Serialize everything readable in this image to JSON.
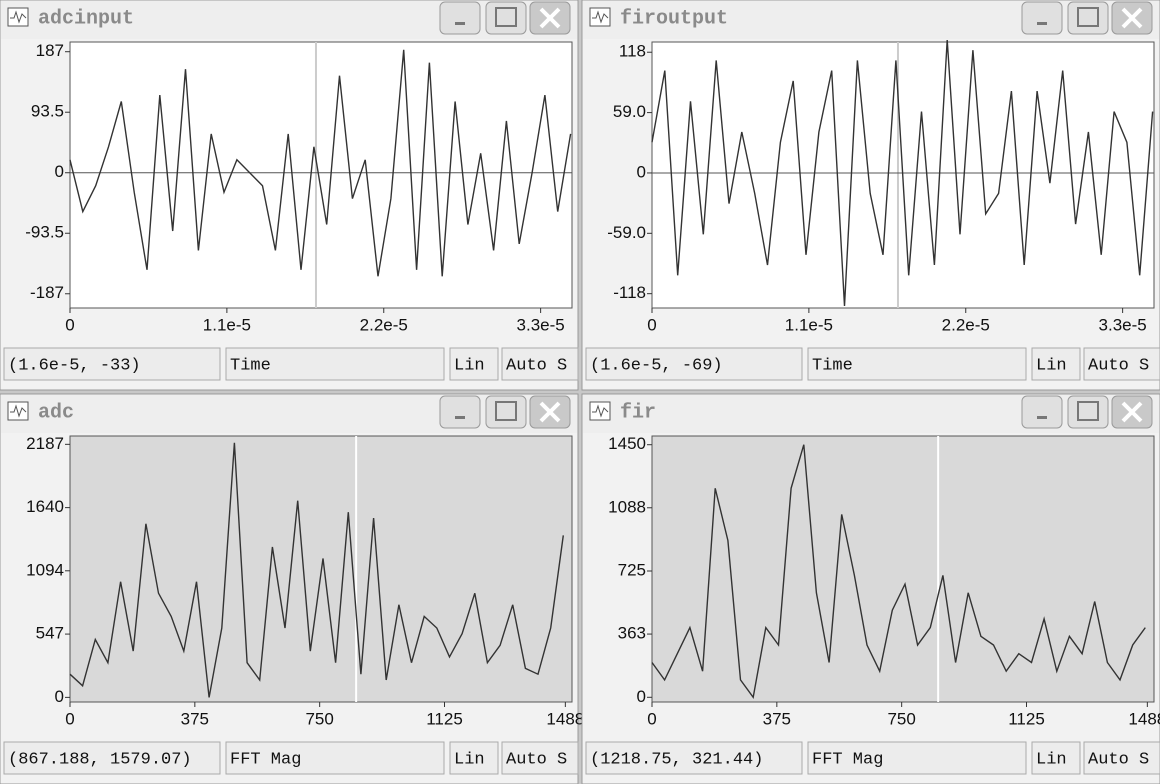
{
  "windows": [
    {
      "title": "adcinput",
      "chart": {
        "type": "line",
        "color": "#333333",
        "plot_background": "#ffffff",
        "zero_line": true,
        "x": [
          0,
          9e-07,
          1.8e-06,
          2.7e-06,
          3.6e-06,
          4.5e-06,
          5.4e-06,
          6.3e-06,
          7.2e-06,
          8.1e-06,
          9e-06,
          9.9e-06,
          1.08e-05,
          1.17e-05,
          1.26e-05,
          1.35e-05,
          1.44e-05,
          1.53e-05,
          1.62e-05,
          1.71e-05,
          1.8e-05,
          1.89e-05,
          1.98e-05,
          2.07e-05,
          2.16e-05,
          2.25e-05,
          2.34e-05,
          2.43e-05,
          2.52e-05,
          2.61e-05,
          2.7e-05,
          2.79e-05,
          2.88e-05,
          2.97e-05,
          3.06e-05,
          3.15e-05,
          3.24e-05,
          3.33e-05,
          3.42e-05,
          3.51e-05
        ],
        "values": [
          20,
          -60,
          -20,
          40,
          110,
          -30,
          -150,
          120,
          -90,
          160,
          -120,
          60,
          -30,
          20,
          0,
          -20,
          -120,
          60,
          -150,
          40,
          -80,
          150,
          -40,
          20,
          -160,
          -40,
          190,
          -150,
          170,
          -160,
          110,
          -80,
          30,
          -120,
          80,
          -110,
          0,
          120,
          -60,
          60
        ],
        "xlim": [
          0,
          3.52e-05
        ],
        "ylim": [
          -209,
          202
        ],
        "xticks": [
          0,
          {
            "value": 1.1e-05,
            "label": "1.1e-5"
          },
          {
            "value": 2.2e-05,
            "label": "2.2e-5"
          },
          {
            "value": 3.3e-05,
            "label": "3.3e-5"
          }
        ],
        "yticks": [
          187,
          93.5,
          0,
          -93.5,
          -187
        ]
      },
      "status": {
        "cursor": "(1.6e-5, -33)",
        "label": "Time",
        "scale": "Lin",
        "mode": "Auto S"
      }
    },
    {
      "title": "firoutput",
      "chart": {
        "type": "line",
        "color": "#333333",
        "plot_background": "#ffffff",
        "zero_line": true,
        "x": [
          0,
          9e-07,
          1.8e-06,
          2.7e-06,
          3.6e-06,
          4.5e-06,
          5.4e-06,
          6.3e-06,
          7.2e-06,
          8.1e-06,
          9e-06,
          9.9e-06,
          1.08e-05,
          1.17e-05,
          1.26e-05,
          1.35e-05,
          1.44e-05,
          1.53e-05,
          1.62e-05,
          1.71e-05,
          1.8e-05,
          1.89e-05,
          1.98e-05,
          2.07e-05,
          2.16e-05,
          2.25e-05,
          2.34e-05,
          2.43e-05,
          2.52e-05,
          2.61e-05,
          2.7e-05,
          2.79e-05,
          2.88e-05,
          2.97e-05,
          3.06e-05,
          3.15e-05,
          3.24e-05,
          3.33e-05,
          3.42e-05,
          3.51e-05
        ],
        "values": [
          30,
          100,
          -100,
          70,
          -60,
          110,
          -30,
          40,
          -20,
          -90,
          30,
          90,
          -80,
          40,
          100,
          -130,
          110,
          -20,
          -80,
          110,
          -100,
          60,
          -90,
          130,
          -60,
          120,
          -40,
          -20,
          80,
          -90,
          80,
          -10,
          100,
          -50,
          40,
          -80,
          60,
          30,
          -100,
          60
        ],
        "xlim": [
          0,
          3.52e-05
        ],
        "ylim": [
          -132,
          128
        ],
        "xticks": [
          0,
          {
            "value": 1.1e-05,
            "label": "1.1e-5"
          },
          {
            "value": 2.2e-05,
            "label": "2.2e-5"
          },
          {
            "value": 3.3e-05,
            "label": "3.3e-5"
          }
        ],
        "yticks": [
          118,
          {
            "value": 59,
            "label": "59.0"
          },
          0,
          {
            "value": -59,
            "label": "-59.0"
          },
          -118
        ]
      },
      "status": {
        "cursor": "(1.6e-5, -69)",
        "label": "Time",
        "scale": "Lin",
        "mode": "Auto S"
      }
    },
    {
      "title": "adc",
      "chart": {
        "type": "line",
        "color": "#333333",
        "plot_background": "#d9d9d9",
        "zero_line": false,
        "x": [
          0,
          38,
          76,
          114,
          152,
          190,
          228,
          266,
          304,
          342,
          380,
          418,
          456,
          494,
          532,
          570,
          608,
          646,
          684,
          722,
          760,
          798,
          836,
          874,
          912,
          950,
          988,
          1026,
          1064,
          1102,
          1140,
          1178,
          1216,
          1254,
          1292,
          1330,
          1368,
          1406,
          1444,
          1482
        ],
        "values": [
          200,
          100,
          500,
          300,
          1000,
          400,
          1500,
          900,
          700,
          400,
          1000,
          0,
          600,
          2200,
          300,
          150,
          1300,
          600,
          1700,
          400,
          1200,
          300,
          1600,
          200,
          1550,
          150,
          800,
          300,
          700,
          600,
          350,
          550,
          900,
          300,
          450,
          800,
          250,
          200,
          600,
          1400
        ],
        "xlim": [
          0,
          1508
        ],
        "ylim": [
          -40,
          2259
        ],
        "xticks": [
          0,
          375,
          750,
          1125,
          1488
        ],
        "yticks": [
          2187,
          1640,
          1094,
          547,
          0
        ]
      },
      "status": {
        "cursor": "(867.188, 1579.07)",
        "label": "FFT Mag",
        "scale": "Lin",
        "mode": "Auto S"
      }
    },
    {
      "title": "fir",
      "chart": {
        "type": "line",
        "color": "#333333",
        "plot_background": "#d9d9d9",
        "zero_line": false,
        "x": [
          0,
          38,
          76,
          114,
          152,
          190,
          228,
          266,
          304,
          342,
          380,
          418,
          456,
          494,
          532,
          570,
          608,
          646,
          684,
          722,
          760,
          798,
          836,
          874,
          912,
          950,
          988,
          1026,
          1064,
          1102,
          1140,
          1178,
          1216,
          1254,
          1292,
          1330,
          1368,
          1406,
          1444,
          1482
        ],
        "values": [
          200,
          100,
          250,
          400,
          150,
          1200,
          900,
          100,
          0,
          400,
          300,
          1200,
          1450,
          600,
          200,
          1050,
          700,
          300,
          150,
          500,
          650,
          300,
          400,
          700,
          200,
          600,
          350,
          300,
          150,
          250,
          200,
          450,
          150,
          350,
          250,
          550,
          200,
          100,
          300,
          400
        ],
        "xlim": [
          0,
          1508
        ],
        "ylim": [
          -27,
          1500
        ],
        "xticks": [
          0,
          375,
          750,
          1125,
          1488
        ],
        "yticks": [
          1450,
          1088,
          725,
          363,
          0
        ]
      },
      "status": {
        "cursor": "(1218.75, 321.44)",
        "label": "FFT Mag",
        "scale": "Lin",
        "mode": "Auto S"
      }
    }
  ]
}
